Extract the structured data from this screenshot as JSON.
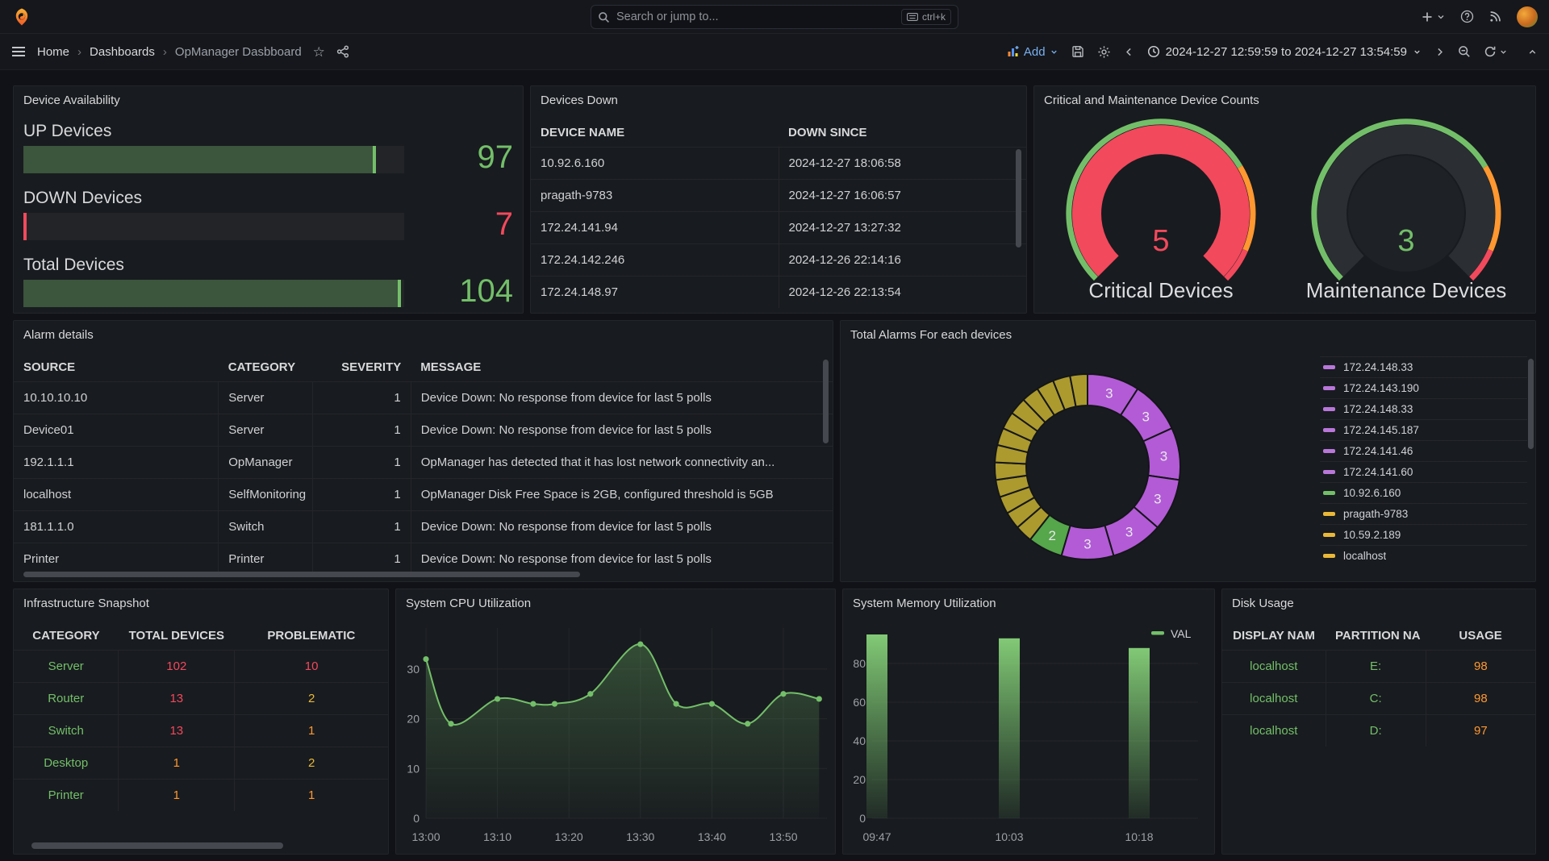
{
  "colors": {
    "green": "#73BF69",
    "red": "#F2495C",
    "orange": "#FF9830",
    "yellow": "#EAB839",
    "purple": "#B877D9",
    "blue": "#5794F2",
    "olive": "#AC9A2E",
    "donut_green": "#56A64B",
    "donut_purple": "#B35BD6"
  },
  "topnav": {
    "search_placeholder": "Search or jump to...",
    "search_shortcut": "ctrl+k"
  },
  "toolbar": {
    "breadcrumb": [
      "Home",
      "Dashboards",
      "OpManager Dasbboard"
    ],
    "add_label": "Add",
    "time_range": "2024-12-27 12:59:59 to 2024-12-27 13:54:59"
  },
  "panels": {
    "device_availability": {
      "title": "Device Availability",
      "bars": [
        {
          "label": "UP Devices",
          "value": "97",
          "color": "green",
          "fill_fraction": 0.935
        },
        {
          "label": "DOWN Devices",
          "value": "7",
          "color": "red",
          "fill_fraction": 0.012
        },
        {
          "label": "Total Devices",
          "value": "104",
          "color": "green",
          "fill_fraction": 1
        }
      ]
    },
    "devices_down": {
      "title": "Devices Down",
      "headers": [
        "DEVICE NAME",
        "DOWN SINCE"
      ],
      "rows": [
        [
          "10.92.6.160",
          "2024-12-27 18:06:58"
        ],
        [
          "pragath-9783",
          "2024-12-27 16:06:57"
        ],
        [
          "172.24.141.94",
          "2024-12-27 13:27:32"
        ],
        [
          "172.24.142.246",
          "2024-12-26 22:14:16"
        ],
        [
          "172.24.148.97",
          "2024-12-26 22:13:54"
        ]
      ]
    },
    "gauge_counts": {
      "title": "Critical and Maintenance Device Counts",
      "gauges": [
        {
          "value": "5",
          "label": "Critical Devices",
          "value_color": "red",
          "filled": true
        },
        {
          "value": "3",
          "label": "Maintenance Devices",
          "value_color": "green",
          "filled": false
        }
      ]
    },
    "alarm_details": {
      "title": "Alarm details",
      "headers": [
        "SOURCE",
        "CATEGORY",
        "SEVERITY",
        "MESSAGE"
      ],
      "rows": [
        [
          "10.10.10.10",
          "Server",
          "1",
          "Device Down: No response from device for last 5 polls"
        ],
        [
          "Device01",
          "Server",
          "1",
          "Device Down: No response from device for last 5 polls"
        ],
        [
          "192.1.1.1",
          "OpManager",
          "1",
          "OpManager has detected that it has lost network connectivity an..."
        ],
        [
          "localhost",
          "SelfMonitoring",
          "1",
          "OpManager Disk Free Space is 2GB, configured threshold is 5GB"
        ],
        [
          "181.1.1.0",
          "Switch",
          "1",
          "Device Down: No response from device for last 5 polls"
        ],
        [
          "Printer",
          "Printer",
          "1",
          "Device Down: No response from device for last 5 polls"
        ]
      ]
    },
    "total_alarms": {
      "title": "Total Alarms For each devices",
      "legend": [
        {
          "label": "172.24.148.33",
          "color": "purple"
        },
        {
          "label": "172.24.143.190",
          "color": "purple"
        },
        {
          "label": "172.24.148.33",
          "color": "purple"
        },
        {
          "label": "172.24.145.187",
          "color": "purple"
        },
        {
          "label": "172.24.141.46",
          "color": "purple"
        },
        {
          "label": "172.24.141.60",
          "color": "purple"
        },
        {
          "label": "10.92.6.160",
          "color": "green"
        },
        {
          "label": "pragath-9783",
          "color": "yellow"
        },
        {
          "label": "10.59.2.189",
          "color": "yellow"
        },
        {
          "label": "localhost",
          "color": "yellow"
        }
      ]
    },
    "infrastructure": {
      "title": "Infrastructure Snapshot",
      "headers": [
        "CATEGORY",
        "TOTAL DEVICES",
        "PROBLEMATIC"
      ],
      "rows": [
        [
          "Server",
          "102",
          "10"
        ],
        [
          "Router",
          "13",
          "2"
        ],
        [
          "Switch",
          "13",
          "1"
        ],
        [
          "Desktop",
          "1",
          "2"
        ],
        [
          "Printer",
          "1",
          "1"
        ]
      ],
      "cell_colors": [
        [
          "green",
          "red",
          "red"
        ],
        [
          "green",
          "red",
          "yellow"
        ],
        [
          "green",
          "red",
          "orange"
        ],
        [
          "green",
          "orange",
          "yellow"
        ],
        [
          "green",
          "orange",
          "orange"
        ]
      ]
    },
    "cpu": {
      "title": "System CPU Utilization"
    },
    "memory": {
      "title": "System Memory Utilization",
      "legend_label": "VAL"
    },
    "disk_usage": {
      "title": "Disk Usage",
      "headers": [
        "DISPLAY NAM",
        "PARTITION NA",
        "USAGE"
      ],
      "rows": [
        [
          "localhost",
          "E:",
          "98"
        ],
        [
          "localhost",
          "C:",
          "98"
        ],
        [
          "localhost",
          "D:",
          "97"
        ]
      ],
      "cell_colors": [
        [
          "green",
          "green",
          "orange"
        ],
        [
          "green",
          "green",
          "orange"
        ],
        [
          "green",
          "green",
          "orange"
        ]
      ]
    }
  },
  "chart_data": [
    {
      "panel": "Device Availability",
      "type": "bar",
      "orientation": "horizontal",
      "categories": [
        "UP Devices",
        "DOWN Devices",
        "Total Devices"
      ],
      "values": [
        97,
        7,
        104
      ],
      "colors": [
        "green",
        "red",
        "green"
      ]
    },
    {
      "panel": "Critical and Maintenance Device Counts",
      "type": "gauge",
      "series": [
        {
          "name": "Critical Devices",
          "value": 5
        },
        {
          "name": "Maintenance Devices",
          "value": 3
        }
      ],
      "threshold_colors": [
        "green",
        "orange",
        "red"
      ]
    },
    {
      "panel": "Total Alarms For each devices",
      "type": "pie",
      "style": "donut",
      "legend_position": "right",
      "series": [
        {
          "name": "172.24.148.33",
          "value": 3,
          "color": "purple",
          "label": "3"
        },
        {
          "name": "172.24.143.190",
          "value": 3,
          "color": "purple",
          "label": "3"
        },
        {
          "name": "172.24.148.33",
          "value": 3,
          "color": "purple",
          "label": "3"
        },
        {
          "name": "172.24.145.187",
          "value": 3,
          "color": "purple",
          "label": "3"
        },
        {
          "name": "172.24.141.46",
          "value": 3,
          "color": "purple",
          "label": "3"
        },
        {
          "name": "172.24.141.60",
          "value": 3,
          "color": "purple",
          "label": "3"
        },
        {
          "name": "10.92.6.160",
          "value": 2,
          "color": "green",
          "label": "2"
        },
        {
          "name": "pragath-9783",
          "value": 1,
          "color": "yellow"
        },
        {
          "name": "10.59.2.189",
          "value": 1,
          "color": "yellow"
        },
        {
          "name": "localhost",
          "value": 1,
          "color": "yellow"
        },
        {
          "name": null,
          "value": 1,
          "color": "yellow"
        },
        {
          "name": null,
          "value": 1,
          "color": "yellow"
        },
        {
          "name": null,
          "value": 1,
          "color": "yellow"
        },
        {
          "name": null,
          "value": 1,
          "color": "yellow"
        },
        {
          "name": null,
          "value": 1,
          "color": "yellow"
        },
        {
          "name": null,
          "value": 1,
          "color": "yellow"
        },
        {
          "name": null,
          "value": 1,
          "color": "yellow"
        },
        {
          "name": null,
          "value": 1,
          "color": "yellow"
        },
        {
          "name": null,
          "value": 1,
          "color": "yellow"
        },
        {
          "name": null,
          "value": 1,
          "color": "yellow"
        }
      ]
    },
    {
      "panel": "System CPU Utilization",
      "type": "line",
      "color": "green",
      "x_unit": "minutes after 13:00",
      "x_ticks": [
        "13:00",
        "13:10",
        "13:20",
        "13:30",
        "13:40",
        "13:50"
      ],
      "y_ticks": [
        0,
        10,
        20,
        30
      ],
      "ylim": [
        0,
        37
      ],
      "points": [
        {
          "m": 0,
          "v": 32
        },
        {
          "m": 3.5,
          "v": 19
        },
        {
          "m": 10,
          "v": 24
        },
        {
          "m": 15,
          "v": 23
        },
        {
          "m": 18,
          "v": 23
        },
        {
          "m": 23,
          "v": 25
        },
        {
          "m": 30,
          "v": 35
        },
        {
          "m": 35,
          "v": 23
        },
        {
          "m": 40,
          "v": 23
        },
        {
          "m": 45,
          "v": 19
        },
        {
          "m": 50,
          "v": 25
        },
        {
          "m": 55,
          "v": 24
        }
      ]
    },
    {
      "panel": "System Memory Utilization",
      "type": "bar",
      "legend": [
        "VAL"
      ],
      "color": "green",
      "categories": [
        "09:47",
        "10:03",
        "10:18"
      ],
      "values": [
        95,
        93,
        88
      ],
      "y_ticks": [
        0,
        20,
        40,
        60,
        80
      ],
      "ylim": [
        0,
        97
      ]
    }
  ]
}
